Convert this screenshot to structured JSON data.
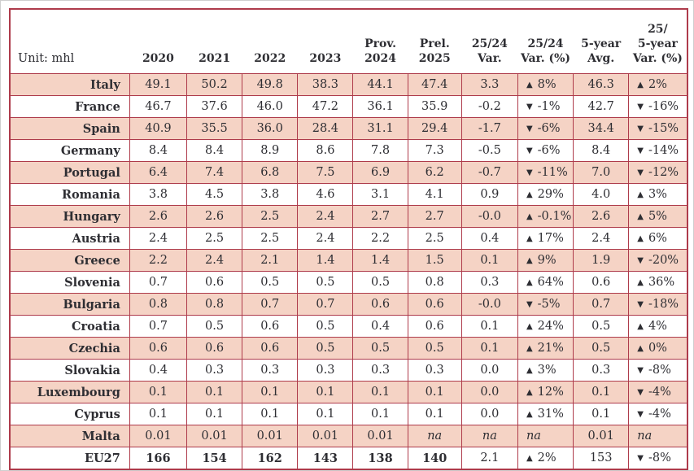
{
  "colors": {
    "table_border": "#ae3b4b",
    "row_highlight": "#f5d3c5",
    "text": "#2e2e33"
  },
  "chart_data": {
    "type": "table",
    "unit_label": "Unit: mhl",
    "columns": [
      "2020",
      "2021",
      "2022",
      "2023",
      "Prov.\n2024",
      "Prel.\n2025",
      "25/24\nVar.",
      "25/24\nVar. (%)",
      "5-year\nAvg.",
      "25/\n5-year\nVar. (%)"
    ],
    "rows": [
      {
        "name": "Italy",
        "cells": [
          {
            "t": "49.1"
          },
          {
            "t": "50.2"
          },
          {
            "t": "49.8"
          },
          {
            "t": "38.3"
          },
          {
            "t": "44.1"
          },
          {
            "t": "47.4"
          },
          {
            "t": "3.3"
          },
          {
            "icon": "up",
            "t": "8%"
          },
          {
            "t": "46.3"
          },
          {
            "icon": "up",
            "t": "2%"
          }
        ]
      },
      {
        "name": "France",
        "cells": [
          {
            "t": "46.7"
          },
          {
            "t": "37.6"
          },
          {
            "t": "46.0"
          },
          {
            "t": "47.2"
          },
          {
            "t": "36.1"
          },
          {
            "t": "35.9"
          },
          {
            "t": "-0.2"
          },
          {
            "icon": "down",
            "t": "-1%"
          },
          {
            "t": "42.7"
          },
          {
            "icon": "down",
            "t": "-16%"
          }
        ]
      },
      {
        "name": "Spain",
        "cells": [
          {
            "t": "40.9"
          },
          {
            "t": "35.5"
          },
          {
            "t": "36.0"
          },
          {
            "t": "28.4"
          },
          {
            "t": "31.1"
          },
          {
            "t": "29.4"
          },
          {
            "t": "-1.7"
          },
          {
            "icon": "down",
            "t": "-6%"
          },
          {
            "t": "34.4"
          },
          {
            "icon": "down",
            "t": "-15%"
          }
        ]
      },
      {
        "name": "Germany",
        "cells": [
          {
            "t": "8.4"
          },
          {
            "t": "8.4"
          },
          {
            "t": "8.9"
          },
          {
            "t": "8.6"
          },
          {
            "t": "7.8"
          },
          {
            "t": "7.3"
          },
          {
            "t": "-0.5"
          },
          {
            "icon": "down",
            "t": "-6%"
          },
          {
            "t": "8.4"
          },
          {
            "icon": "down",
            "t": "-14%"
          }
        ]
      },
      {
        "name": "Portugal",
        "cells": [
          {
            "t": "6.4"
          },
          {
            "t": "7.4"
          },
          {
            "t": "6.8"
          },
          {
            "t": "7.5"
          },
          {
            "t": "6.9"
          },
          {
            "t": "6.2"
          },
          {
            "t": "-0.7"
          },
          {
            "icon": "down",
            "t": "-11%"
          },
          {
            "t": "7.0"
          },
          {
            "icon": "down",
            "t": "-12%"
          }
        ]
      },
      {
        "name": "Romania",
        "cells": [
          {
            "t": "3.8"
          },
          {
            "t": "4.5"
          },
          {
            "t": "3.8"
          },
          {
            "t": "4.6"
          },
          {
            "t": "3.1"
          },
          {
            "t": "4.1"
          },
          {
            "t": "0.9"
          },
          {
            "icon": "up",
            "t": "29%"
          },
          {
            "t": "4.0"
          },
          {
            "icon": "up",
            "t": "3%"
          }
        ]
      },
      {
        "name": "Hungary",
        "cells": [
          {
            "t": "2.6"
          },
          {
            "t": "2.6"
          },
          {
            "t": "2.5"
          },
          {
            "t": "2.4"
          },
          {
            "t": "2.7"
          },
          {
            "t": "2.7"
          },
          {
            "t": "-0.0"
          },
          {
            "icon": "up",
            "t": "-0.1%"
          },
          {
            "t": "2.6"
          },
          {
            "icon": "up",
            "t": "5%"
          }
        ]
      },
      {
        "name": "Austria",
        "cells": [
          {
            "t": "2.4"
          },
          {
            "t": "2.5"
          },
          {
            "t": "2.5"
          },
          {
            "t": "2.4"
          },
          {
            "t": "2.2"
          },
          {
            "t": "2.5"
          },
          {
            "t": "0.4"
          },
          {
            "icon": "up",
            "t": "17%"
          },
          {
            "t": "2.4"
          },
          {
            "icon": "up",
            "t": "6%"
          }
        ]
      },
      {
        "name": "Greece",
        "cells": [
          {
            "t": "2.2"
          },
          {
            "t": "2.4"
          },
          {
            "t": "2.1"
          },
          {
            "t": "1.4"
          },
          {
            "t": "1.4"
          },
          {
            "t": "1.5"
          },
          {
            "t": "0.1"
          },
          {
            "icon": "up",
            "t": "9%"
          },
          {
            "t": "1.9"
          },
          {
            "icon": "down",
            "t": "-20%"
          }
        ]
      },
      {
        "name": "Slovenia",
        "cells": [
          {
            "t": "0.7"
          },
          {
            "t": "0.6"
          },
          {
            "t": "0.5"
          },
          {
            "t": "0.5"
          },
          {
            "t": "0.5"
          },
          {
            "t": "0.8"
          },
          {
            "t": "0.3"
          },
          {
            "icon": "up",
            "t": "64%"
          },
          {
            "t": "0.6"
          },
          {
            "icon": "up",
            "t": "36%"
          }
        ]
      },
      {
        "name": "Bulgaria",
        "cells": [
          {
            "t": "0.8"
          },
          {
            "t": "0.8"
          },
          {
            "t": "0.7"
          },
          {
            "t": "0.7"
          },
          {
            "t": "0.6"
          },
          {
            "t": "0.6"
          },
          {
            "t": "-0.0"
          },
          {
            "icon": "down",
            "t": "-5%"
          },
          {
            "t": "0.7"
          },
          {
            "icon": "down",
            "t": "-18%"
          }
        ]
      },
      {
        "name": "Croatia",
        "cells": [
          {
            "t": "0.7"
          },
          {
            "t": "0.5"
          },
          {
            "t": "0.6"
          },
          {
            "t": "0.5"
          },
          {
            "t": "0.4"
          },
          {
            "t": "0.6"
          },
          {
            "t": "0.1"
          },
          {
            "icon": "up",
            "t": "24%"
          },
          {
            "t": "0.5"
          },
          {
            "icon": "up",
            "t": "4%"
          }
        ]
      },
      {
        "name": "Czechia",
        "cells": [
          {
            "t": "0.6"
          },
          {
            "t": "0.6"
          },
          {
            "t": "0.6"
          },
          {
            "t": "0.5"
          },
          {
            "t": "0.5"
          },
          {
            "t": "0.5"
          },
          {
            "t": "0.1"
          },
          {
            "icon": "up",
            "t": "21%"
          },
          {
            "t": "0.5"
          },
          {
            "icon": "up",
            "t": "0%"
          }
        ]
      },
      {
        "name": "Slovakia",
        "cells": [
          {
            "t": "0.4"
          },
          {
            "t": "0.3"
          },
          {
            "t": "0.3"
          },
          {
            "t": "0.3"
          },
          {
            "t": "0.3"
          },
          {
            "t": "0.3"
          },
          {
            "t": "0.0"
          },
          {
            "icon": "up",
            "t": "3%"
          },
          {
            "t": "0.3"
          },
          {
            "icon": "down",
            "t": "-8%"
          }
        ]
      },
      {
        "name": "Luxembourg",
        "cells": [
          {
            "t": "0.1"
          },
          {
            "t": "0.1"
          },
          {
            "t": "0.1"
          },
          {
            "t": "0.1"
          },
          {
            "t": "0.1"
          },
          {
            "t": "0.1"
          },
          {
            "t": "0.0"
          },
          {
            "icon": "up",
            "t": "12%"
          },
          {
            "t": "0.1"
          },
          {
            "icon": "down",
            "t": "-4%"
          }
        ]
      },
      {
        "name": "Cyprus",
        "cells": [
          {
            "t": "0.1"
          },
          {
            "t": "0.1"
          },
          {
            "t": "0.1"
          },
          {
            "t": "0.1"
          },
          {
            "t": "0.1"
          },
          {
            "t": "0.1"
          },
          {
            "t": "0.0"
          },
          {
            "icon": "up",
            "t": "31%"
          },
          {
            "t": "0.1"
          },
          {
            "icon": "down",
            "t": "-4%"
          }
        ]
      },
      {
        "name": "Malta",
        "cells": [
          {
            "t": "0.01"
          },
          {
            "t": "0.01"
          },
          {
            "t": "0.01"
          },
          {
            "t": "0.01"
          },
          {
            "t": "0.01"
          },
          {
            "t": "na",
            "i": true
          },
          {
            "t": "na",
            "i": true
          },
          {
            "t": "na",
            "i": true
          },
          {
            "t": "0.01"
          },
          {
            "t": "na",
            "i": true
          }
        ]
      },
      {
        "name": "EU27",
        "bold": true,
        "cells": [
          {
            "t": "166"
          },
          {
            "t": "154"
          },
          {
            "t": "162"
          },
          {
            "t": "143"
          },
          {
            "t": "138"
          },
          {
            "t": "140"
          },
          {
            "t": "2.1"
          },
          {
            "icon": "up",
            "t": "2%"
          },
          {
            "t": "153"
          },
          {
            "icon": "down",
            "t": "-8%"
          }
        ]
      }
    ]
  }
}
